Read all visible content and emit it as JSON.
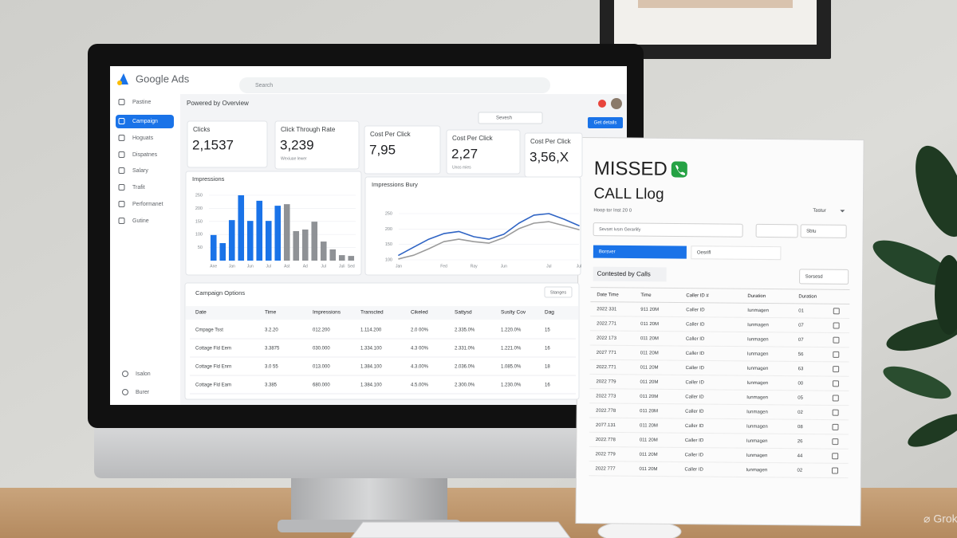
{
  "dashboard": {
    "brand": "Google Ads",
    "search": "Search",
    "heading": "Powered by Overview",
    "nav": [
      "Pastine",
      "Campaign",
      "Hoguats",
      "Dispatnes",
      "Salary",
      "Trafit",
      "Performanet",
      "Gutine"
    ],
    "nav_footer": [
      "Isalon",
      "Burer"
    ],
    "filter": "Sevesh",
    "action": "Get details",
    "kpis": [
      {
        "label": "Clicks",
        "value": "2,1537"
      },
      {
        "label": "Click Through Rate",
        "value": "3,239",
        "note": "Wexiuae lewer"
      },
      {
        "label": "Cost Per Click",
        "value": "7,95"
      },
      {
        "label": "Cost Per Click",
        "value": "2,27",
        "note": "Unos mies"
      },
      {
        "label": "Cost Per Click",
        "value": "3,56,X"
      }
    ],
    "table": {
      "title": "Campaign Options",
      "button": "Stanges",
      "columns": [
        "Date",
        "Time",
        "Impressions",
        "Transcted",
        "Cikeled",
        "Sattysd",
        "Suslty Cov",
        "Dag"
      ],
      "rows": [
        [
          "Cmpage Tsst",
          "3.2.20",
          "012.200",
          "1.114.200",
          "2.0 00%",
          "2.335.0%",
          "1.220.0%",
          "15"
        ],
        [
          "Cottage Fld Eem",
          "3.3875",
          "030.000",
          "1.334.100",
          "4.3 00%",
          "2.331.0%",
          "1.221.0%",
          "16"
        ],
        [
          "Cottage Fld Enrn",
          "3.0 55",
          "013.000",
          "1.384.100",
          "4.3.00%",
          "2.036.0%",
          "1.085.0%",
          "18"
        ],
        [
          "Cottage Fld Eam",
          "3.385",
          "680.000",
          "1.384.100",
          "4.5.00%",
          "2.300.0%",
          "1.230.0%",
          "16"
        ]
      ]
    }
  },
  "chart_data": [
    {
      "type": "bar",
      "title": "Impressions",
      "categories": [
        "Ane",
        null,
        "Jan",
        null,
        "Jun",
        null,
        "Jul",
        null,
        "Ast",
        null,
        "Ad",
        null,
        "Jul",
        null,
        "Juli",
        "Sed"
      ],
      "values": [
        98,
        67,
        155,
        250,
        152,
        229,
        152,
        210,
        216,
        113,
        119,
        149,
        73,
        43,
        21,
        18
      ],
      "colors": [
        "#1a73e8",
        "#1a73e8",
        "#1a73e8",
        "#1a73e8",
        "#1a73e8",
        "#1a73e8",
        "#1a73e8",
        "#1a73e8",
        "#8f9296",
        "#8f9296",
        "#8f9296",
        "#8f9296",
        "#8f9296",
        "#8f9296",
        "#8f9296",
        "#8f9296"
      ],
      "ylim": [
        0,
        250
      ],
      "yticks": [
        50,
        100,
        150,
        200,
        250
      ],
      "grid": true
    },
    {
      "type": "line",
      "title": "Impressions Bury",
      "categories": [
        "Jan",
        null,
        null,
        "Fed",
        null,
        "Ray",
        null,
        "Jun",
        null,
        null,
        "Jul",
        null,
        "Jul"
      ],
      "series": [
        {
          "color": "#2f64c4",
          "values": [
            115,
            141,
            167,
            185,
            192,
            175,
            167,
            183,
            219,
            245,
            250,
            232,
            211
          ]
        },
        {
          "color": "#9b9b9b",
          "values": [
            103,
            115,
            136,
            159,
            167,
            159,
            154,
            172,
            201,
            219,
            224,
            211,
            198
          ]
        }
      ],
      "ylim": [
        100,
        250
      ],
      "yticks": [
        100,
        150,
        200,
        250
      ],
      "grid": true
    }
  ],
  "call_log": {
    "title": "MISSED",
    "subtitle": "CALL Llog",
    "caption": "Hoop tor Inst 20 0",
    "sort": "Tastur",
    "select": "Sevset Ivsm Gerarlify",
    "option": "Sbtu",
    "tabs": [
      "Borsver",
      "Oesrifl"
    ],
    "section": "Contested by Calls",
    "section_button": "Sorsesd",
    "columns": [
      "Date Time",
      "Time",
      "Caller ID #",
      "Duration",
      "Duration"
    ],
    "rows": [
      [
        "2022 331",
        "911 20M",
        "Caller ID",
        "Iunmagen",
        "01"
      ],
      [
        "2022.771",
        "011 20M",
        "Caller ID",
        "Iunmagen",
        "07"
      ],
      [
        "2022 173",
        "011 20M",
        "Caller ID",
        "Iunmagen",
        "07"
      ],
      [
        "2027 771",
        "011 20M",
        "Caller ID",
        "Iunmagen",
        "56"
      ],
      [
        "2022.771",
        "011 20M",
        "Caller ID",
        "Iunmagen",
        "63"
      ],
      [
        "2022 779",
        "011 20M",
        "Caller ID",
        "Iunmagen",
        "00"
      ],
      [
        "2022 773",
        "011 20M",
        "Caller ID",
        "Iunmagen",
        "05"
      ],
      [
        "2022.778",
        "011 20M",
        "Caller ID",
        "Iunmagen",
        "02"
      ],
      [
        "2077.131",
        "011 20M",
        "Caller ID",
        "Iunmagen",
        "08"
      ],
      [
        "2022.778",
        "011 20M",
        "Caller ID",
        "Iunmagen",
        "26"
      ],
      [
        "2022 779",
        "011 20M",
        "Caller ID",
        "Iunmagen",
        "44"
      ],
      [
        "2022 777",
        "011 20M",
        "Caller ID",
        "Iunmagen",
        "02"
      ]
    ]
  }
}
